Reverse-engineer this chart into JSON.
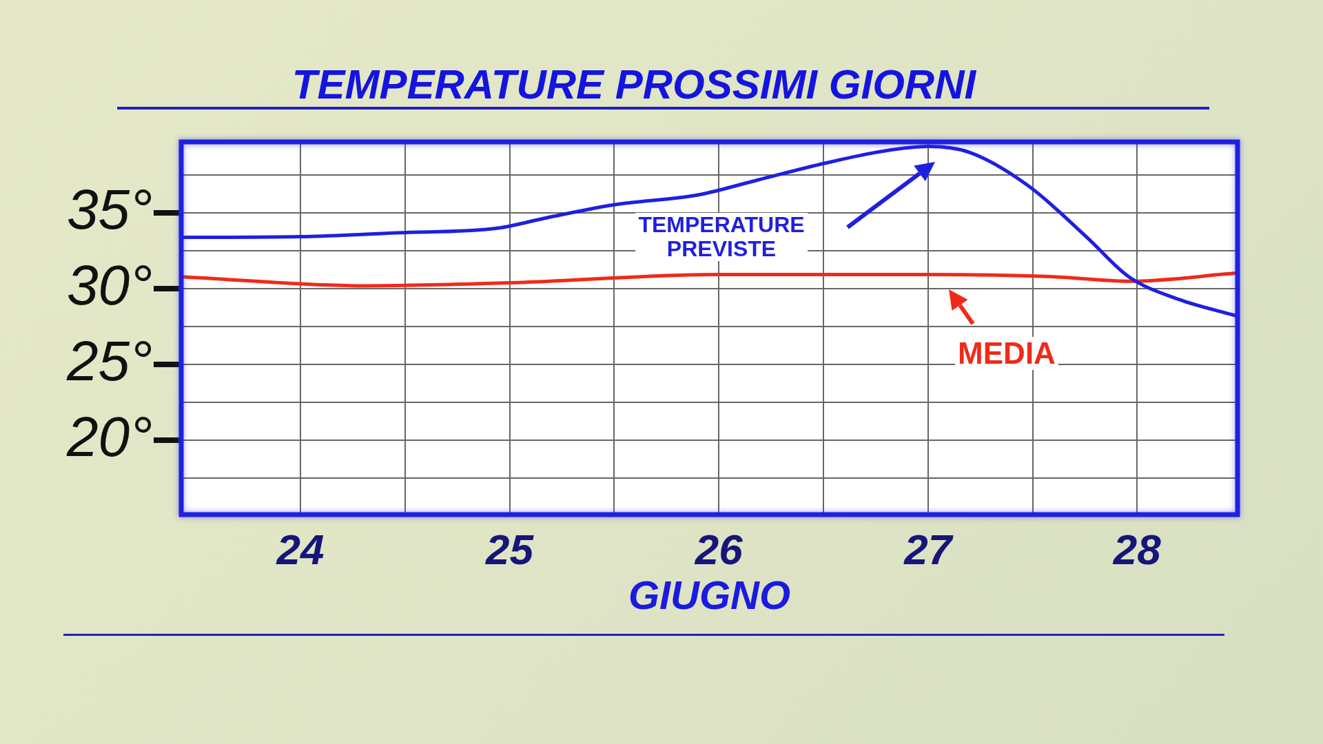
{
  "chart_data": {
    "type": "line",
    "title": "TEMPERATURE PROSSIMI GIORNI",
    "xlabel": "GIUGNO",
    "xlim": [
      23.43,
      28.48
    ],
    "xticks": [
      24,
      {
        "value": 24.5,
        "label": null
      },
      25,
      {
        "value": 25.5,
        "label": null
      },
      26,
      {
        "value": 26.5,
        "label": null
      },
      27,
      {
        "value": 27.5,
        "label": null
      },
      28
    ],
    "ylim": [
      15.1,
      39.7
    ],
    "yticks": [
      {
        "value": 17.5,
        "label": null
      },
      {
        "value": 20,
        "label": "20°"
      },
      {
        "value": 22.5,
        "label": null
      },
      {
        "value": 25,
        "label": "25°"
      },
      {
        "value": 27.5,
        "label": null
      },
      {
        "value": 30,
        "label": "30°"
      },
      {
        "value": 32.5,
        "label": null
      },
      {
        "value": 35,
        "label": "35°"
      },
      {
        "value": 37.5,
        "label": null
      }
    ],
    "grid": true,
    "legend": false,
    "series": [
      {
        "color": "#1f1fe0",
        "x": [
          23.43,
          24.0,
          24.46,
          24.94,
          25.18,
          25.5,
          25.9,
          26.19,
          26.51,
          26.79,
          27.0,
          27.2,
          27.48,
          27.76,
          27.96,
          28.2,
          28.48
        ],
        "values": [
          33.4,
          33.45,
          33.7,
          34.0,
          34.7,
          35.55,
          36.2,
          37.2,
          38.3,
          39.1,
          39.4,
          39.0,
          36.8,
          33.4,
          30.8,
          29.3,
          28.2
        ]
      },
      {
        "color": "#f02a1a",
        "x": [
          23.43,
          24.3,
          25.0,
          26.0,
          27.0,
          27.6,
          27.96,
          28.48
        ],
        "values": [
          30.8,
          30.2,
          30.4,
          30.95,
          30.95,
          30.8,
          30.5,
          31.05
        ]
      }
    ],
    "annotations": [
      "TEMPERATURE\nPREVISTE",
      "MEDIA"
    ]
  }
}
